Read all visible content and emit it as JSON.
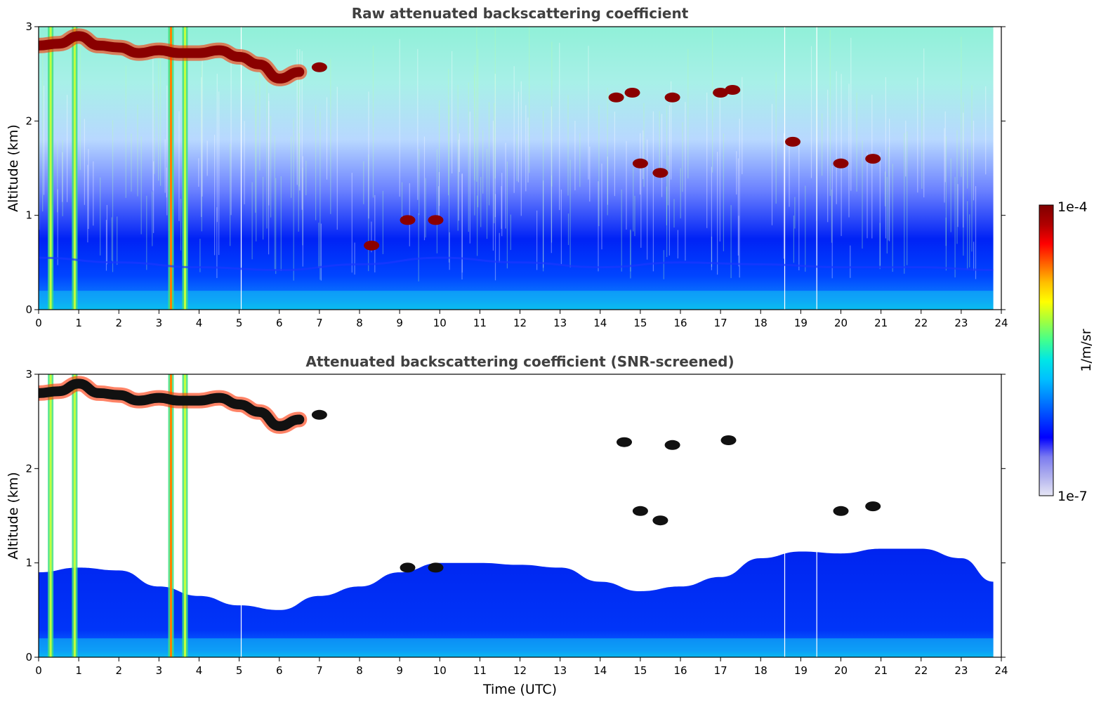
{
  "chart_data": [
    {
      "type": "heatmap",
      "title": "Raw attenuated backscattering coefficient",
      "xlabel": "",
      "ylabel": "Altitude (km)",
      "xlim": [
        0,
        24
      ],
      "ylim": [
        0,
        3
      ],
      "x_ticks": [
        "0",
        "1",
        "2",
        "3",
        "4",
        "5",
        "6",
        "7",
        "8",
        "9",
        "10",
        "11",
        "12",
        "13",
        "14",
        "15",
        "16",
        "17",
        "18",
        "19",
        "20",
        "21",
        "22",
        "23",
        "24"
      ],
      "y_ticks": [
        "0",
        "1",
        "2",
        "3"
      ],
      "data_extent_hours": [
        0,
        23.8
      ],
      "layers": [
        {
          "feature": "cloud_top_layer",
          "x": [
            0,
            0.5,
            1,
            1.5,
            2,
            2.5,
            3,
            3.5,
            4,
            4.5,
            5,
            5.5,
            6,
            6.5
          ],
          "y": [
            2.8,
            2.82,
            2.9,
            2.8,
            2.78,
            2.72,
            2.75,
            2.72,
            2.72,
            2.75,
            2.68,
            2.6,
            2.45,
            2.52
          ]
        },
        {
          "feature": "cloud_patch",
          "x": [
            7.0,
            8.3,
            9.2,
            9.9,
            14.4,
            14.8,
            15.0,
            15.5,
            15.8,
            17.0,
            17.3,
            18.8,
            20.0,
            20.8
          ],
          "y": [
            2.57,
            0.68,
            0.95,
            0.95,
            2.25,
            2.3,
            1.55,
            1.45,
            2.25,
            2.3,
            2.33,
            1.78,
            1.55,
            1.6
          ]
        },
        {
          "feature": "boundary_layer_top",
          "x": [
            0,
            2,
            4,
            6,
            8,
            10,
            12,
            14,
            16,
            18,
            20,
            22,
            23.8
          ],
          "y": [
            0.55,
            0.5,
            0.45,
            0.42,
            0.48,
            0.55,
            0.5,
            0.45,
            0.5,
            0.48,
            0.45,
            0.45,
            0.42
          ]
        }
      ],
      "precipitation_columns_hours": [
        0.3,
        0.9,
        3.3,
        3.65
      ],
      "gap_columns_hours": [
        5.05,
        18.6,
        19.4
      ]
    },
    {
      "type": "heatmap",
      "title": "Attenuated backscattering coefficient (SNR-screened)",
      "xlabel": "Time (UTC)",
      "ylabel": "Altitude (km)",
      "xlim": [
        0,
        24
      ],
      "ylim": [
        0,
        3
      ],
      "x_ticks": [
        "0",
        "1",
        "2",
        "3",
        "4",
        "5",
        "6",
        "7",
        "8",
        "9",
        "10",
        "11",
        "12",
        "13",
        "14",
        "15",
        "16",
        "17",
        "18",
        "19",
        "20",
        "21",
        "22",
        "23",
        "24"
      ],
      "y_ticks": [
        "0",
        "1",
        "2",
        "3"
      ],
      "data_extent_hours": [
        0,
        23.8
      ],
      "screened_top": {
        "x": [
          0,
          1,
          2,
          3,
          4,
          5,
          6,
          7,
          8,
          9,
          10,
          11,
          12,
          13,
          14,
          15,
          16,
          17,
          18,
          19,
          20,
          21,
          22,
          23,
          23.8
        ],
        "y": [
          0.9,
          0.95,
          0.92,
          0.75,
          0.65,
          0.55,
          0.5,
          0.65,
          0.75,
          0.9,
          1.0,
          1.0,
          0.98,
          0.95,
          0.8,
          0.7,
          0.75,
          0.85,
          1.05,
          1.12,
          1.1,
          1.15,
          1.15,
          1.05,
          0.8
        ]
      },
      "layers": [
        {
          "feature": "cloud_top_layer",
          "x": [
            0,
            0.5,
            1,
            1.5,
            2,
            2.5,
            3,
            3.5,
            4,
            4.5,
            5,
            5.5,
            6,
            6.5
          ],
          "y": [
            2.8,
            2.82,
            2.9,
            2.8,
            2.78,
            2.72,
            2.75,
            2.72,
            2.72,
            2.75,
            2.68,
            2.6,
            2.45,
            2.52
          ]
        },
        {
          "feature": "cloud_patch",
          "x": [
            7.0,
            9.2,
            9.9,
            14.6,
            15.0,
            15.5,
            15.8,
            17.2,
            20.0,
            20.8
          ],
          "y": [
            2.57,
            0.95,
            0.95,
            2.28,
            1.55,
            1.45,
            2.25,
            2.3,
            1.55,
            1.6
          ]
        }
      ],
      "precipitation_columns_hours": [
        0.3,
        0.9,
        3.3,
        3.65
      ],
      "gap_columns_hours": [
        5.05,
        18.6,
        19.4
      ]
    }
  ],
  "colorbar": {
    "label": "1/m/sr",
    "max_label": "1e-4",
    "min_label": "1e-7",
    "scale": "log",
    "range": [
      1e-07,
      0.0001
    ],
    "colormap": "jet",
    "colors": [
      "#e6e6f5",
      "#b0b0ee",
      "#7c7cf0",
      "#0000ff",
      "#0040ff",
      "#0080ff",
      "#00bfff",
      "#00e6e6",
      "#40ff90",
      "#a0ff40",
      "#ffff00",
      "#ffbf00",
      "#ff6000",
      "#ff0000",
      "#b00000",
      "#7f0000"
    ]
  }
}
